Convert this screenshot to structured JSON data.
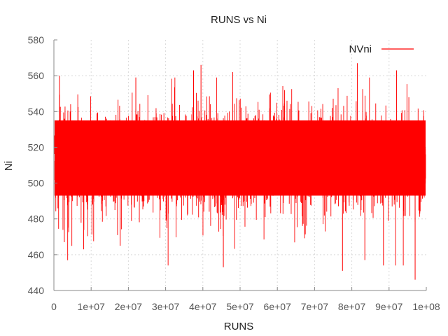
{
  "chart_data": {
    "type": "line",
    "title": "RUNS vs Ni",
    "xlabel": "RUNS",
    "ylabel": "Ni",
    "xlim": [
      0,
      100000000
    ],
    "ylim": [
      440,
      580
    ],
    "xticks": [
      0,
      10000000,
      20000000,
      30000000,
      40000000,
      50000000,
      60000000,
      70000000,
      80000000,
      90000000,
      100000000
    ],
    "xtick_labels": [
      "0",
      "1e+07",
      "2e+07",
      "3e+07",
      "4e+07",
      "5e+07",
      "6e+07",
      "7e+07",
      "8e+07",
      "9e+07",
      "1e+08"
    ],
    "yticks": [
      440,
      460,
      480,
      500,
      520,
      540,
      560,
      580
    ],
    "ytick_labels": [
      "440",
      "460",
      "480",
      "500",
      "520",
      "540",
      "560",
      "580"
    ],
    "grid": true,
    "legend_position": "top-right",
    "series": [
      {
        "name": "NVni",
        "color": "#ff0000",
        "mean": 512,
        "dense_band": [
          493,
          535
        ],
        "observed_min": 446,
        "observed_max": 567,
        "notable_points": [
          {
            "x": 1500000,
            "y": 560
          },
          {
            "x": 2800000,
            "y": 467
          },
          {
            "x": 8000000,
            "y": 463
          },
          {
            "x": 17800000,
            "y": 465
          },
          {
            "x": 22000000,
            "y": 559
          },
          {
            "x": 37500000,
            "y": 563
          },
          {
            "x": 39500000,
            "y": 566
          },
          {
            "x": 45500000,
            "y": 453
          },
          {
            "x": 48000000,
            "y": 562
          },
          {
            "x": 77500000,
            "y": 451
          },
          {
            "x": 81500000,
            "y": 567
          },
          {
            "x": 83500000,
            "y": 457
          },
          {
            "x": 88500000,
            "y": 454
          },
          {
            "x": 92000000,
            "y": 563
          },
          {
            "x": 97000000,
            "y": 446
          }
        ]
      }
    ]
  }
}
